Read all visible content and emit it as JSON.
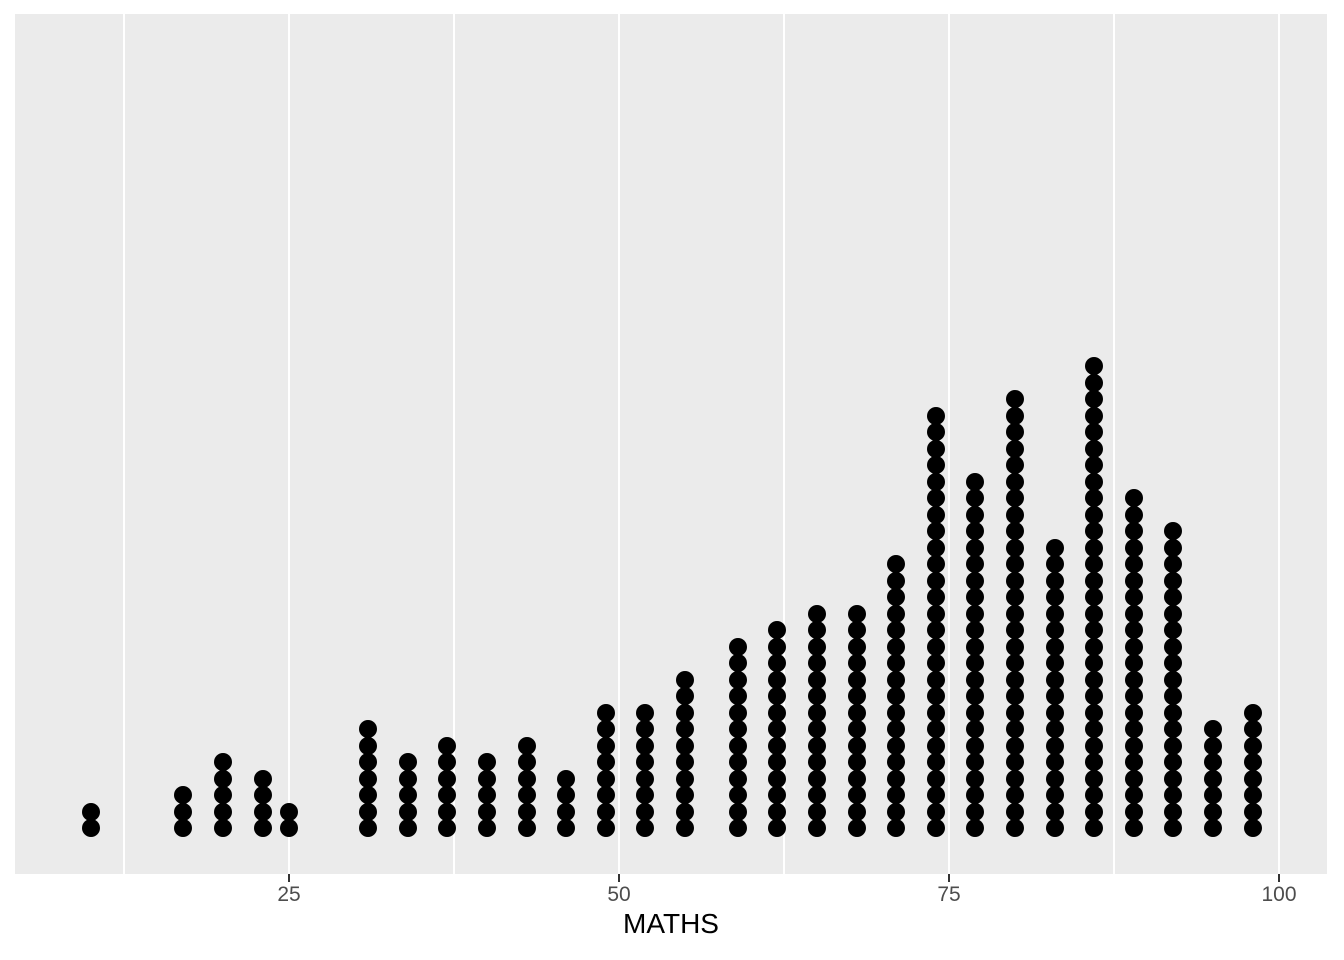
{
  "chart_data": {
    "type": "dotplot",
    "title": "",
    "xlabel": "MATHS",
    "ylabel": "",
    "x_ticks": [
      25,
      50,
      75,
      100
    ],
    "x_tick_labels": [
      "25",
      "50",
      "75",
      "100"
    ],
    "x_minor_gridlines": [
      12.5,
      37.5,
      62.5,
      87.5
    ],
    "xlim": [
      4.2,
      103.7
    ],
    "grid": "vertical-only",
    "legend": "none",
    "y_axis": "hidden",
    "total_points": 322,
    "stacks": [
      {
        "x": 10,
        "count": 2
      },
      {
        "x": 17,
        "count": 3
      },
      {
        "x": 20,
        "count": 5
      },
      {
        "x": 23,
        "count": 4
      },
      {
        "x": 25,
        "count": 2
      },
      {
        "x": 31,
        "count": 7
      },
      {
        "x": 34,
        "count": 5
      },
      {
        "x": 37,
        "count": 6
      },
      {
        "x": 40,
        "count": 5
      },
      {
        "x": 43,
        "count": 6
      },
      {
        "x": 46,
        "count": 4
      },
      {
        "x": 49,
        "count": 8
      },
      {
        "x": 52,
        "count": 8
      },
      {
        "x": 55,
        "count": 10
      },
      {
        "x": 59,
        "count": 12
      },
      {
        "x": 62,
        "count": 13
      },
      {
        "x": 65,
        "count": 14
      },
      {
        "x": 68,
        "count": 14
      },
      {
        "x": 71,
        "count": 17
      },
      {
        "x": 74,
        "count": 26
      },
      {
        "x": 77,
        "count": 22
      },
      {
        "x": 80,
        "count": 27
      },
      {
        "x": 83,
        "count": 18
      },
      {
        "x": 86,
        "count": 29
      },
      {
        "x": 89,
        "count": 21
      },
      {
        "x": 92,
        "count": 19
      },
      {
        "x": 95,
        "count": 7
      },
      {
        "x": 98,
        "count": 8
      }
    ]
  },
  "style": {
    "outer_bg": "#FFFFFF",
    "panel_bg": "#EBEBEB",
    "gridline_color": "#FFFFFF",
    "dot_color": "#000000",
    "tick_mark_color": "#333333",
    "tick_label_color": "#4D4D4D",
    "axis_title_color": "#000000"
  }
}
